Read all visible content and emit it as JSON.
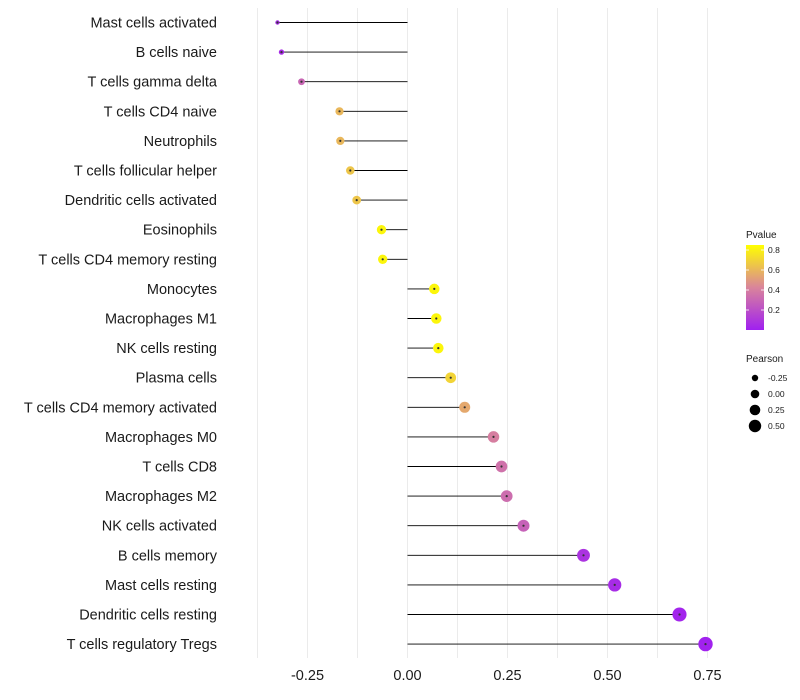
{
  "chart_data": {
    "type": "lollipop",
    "title": "",
    "xlabel": "",
    "ylabel": "",
    "xlim": [
      -0.34,
      0.78
    ],
    "x_ticks": [
      -0.25,
      0.0,
      0.25,
      0.5,
      0.75
    ],
    "x_tick_labels": [
      "-0.25",
      "0.00",
      "0.25",
      "0.50",
      "0.75"
    ],
    "baseline": 0.0,
    "grid": true,
    "categories": [
      "Mast cells activated",
      "B cells naive",
      "T cells gamma delta",
      "T cells CD4 naive",
      "Neutrophils",
      "T cells follicular helper",
      "Dendritic cells activated",
      "Eosinophils",
      "T cells CD4 memory resting",
      "Monocytes",
      "Macrophages M1",
      "NK cells resting",
      "Plasma cells",
      "T cells CD4 memory activated",
      "Macrophages M0",
      "T cells CD8",
      "Macrophages M2",
      "NK cells activated",
      "B cells memory",
      "Mast cells resting",
      "Dendritic cells resting",
      "T cells regulatory  Tregs"
    ],
    "pearson": [
      -0.325,
      -0.315,
      -0.265,
      -0.17,
      -0.168,
      -0.143,
      -0.127,
      -0.065,
      -0.062,
      0.067,
      0.072,
      0.077,
      0.108,
      0.143,
      0.215,
      0.235,
      0.248,
      0.29,
      0.44,
      0.518,
      0.68,
      0.745
    ],
    "pvalue": [
      0.05,
      0.05,
      0.3,
      0.6,
      0.6,
      0.65,
      0.65,
      0.82,
      0.82,
      0.82,
      0.82,
      0.82,
      0.7,
      0.55,
      0.4,
      0.35,
      0.33,
      0.28,
      0.08,
      0.05,
      0.02,
      0.01
    ],
    "legend": {
      "color": {
        "title": "Pvalue",
        "ticks": [
          0.8,
          0.6,
          0.4,
          0.2
        ],
        "tick_labels": [
          "0.8",
          "0.6",
          "0.4",
          "0.2"
        ],
        "range": [
          0.0,
          0.85
        ],
        "low_color": "#a020f0",
        "mid_color": "#d9849b",
        "high_color": "#ffff00"
      },
      "size": {
        "title": "Pearson",
        "values": [
          -0.25,
          0.0,
          0.25,
          0.5
        ],
        "labels": [
          "-0.25",
          "0.00",
          "0.25",
          "0.50"
        ]
      },
      "placement": "right"
    }
  }
}
